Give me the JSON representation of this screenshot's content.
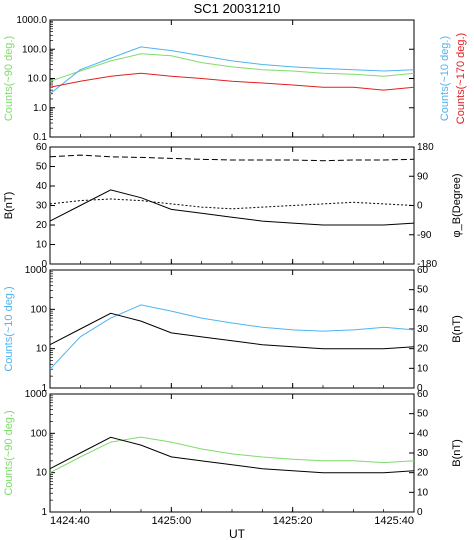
{
  "title": "SC1 20031210",
  "xaxis": {
    "label": "UT",
    "ticks": [
      "1424:40",
      "1425:00",
      "1425:20",
      "1425:40"
    ],
    "range_seconds_labels": [
      "1424:40",
      "1425:40"
    ]
  },
  "colors": {
    "ch_90": "#7ddc6a",
    "ch_10": "#4fb4f0",
    "ch_170": "#e02020",
    "b": "#000000",
    "axes": "#000000"
  },
  "chart_data": [
    {
      "type": "line",
      "panel": "counts-three-channels",
      "yscale": "log",
      "ylim": [
        0.1,
        1000
      ],
      "yticks": [
        "0.1",
        "1.0",
        "10.0",
        "100.0",
        "1000.0"
      ],
      "ylabel_left": "Counts(~90 deg.)",
      "ylabel_right_1": "Counts(~10 deg.)",
      "ylabel_right_2": "Counts(~170 deg.)",
      "x": [
        "1424:40",
        "1424:45",
        "1424:50",
        "1424:55",
        "1425:00",
        "1425:05",
        "1425:10",
        "1425:15",
        "1425:20",
        "1425:25",
        "1425:30",
        "1425:35",
        "1425:40"
      ],
      "series": [
        {
          "values": [
            8,
            18,
            40,
            70,
            60,
            35,
            25,
            20,
            18,
            15,
            14,
            12,
            15
          ]
        },
        {
          "values": [
            3,
            20,
            50,
            120,
            90,
            60,
            40,
            30,
            25,
            22,
            20,
            18,
            20
          ]
        },
        {
          "values": [
            5,
            8,
            12,
            15,
            12,
            10,
            8,
            7,
            6,
            5,
            5,
            4,
            5
          ]
        }
      ]
    },
    {
      "type": "line",
      "panel": "field-magnitude-and-phi",
      "ylim": [
        0,
        60
      ],
      "yticks": [
        "0",
        "10",
        "20",
        "30",
        "40",
        "50",
        "60"
      ],
      "ylabel_left": "B(nT)",
      "y2lim": [
        -180,
        180
      ],
      "y2ticks": [
        "-180",
        "-90",
        "0",
        "90",
        "180"
      ],
      "ylabel_right": "φ_B(Degree)",
      "x": [
        "1424:40",
        "1424:45",
        "1424:50",
        "1424:55",
        "1425:00",
        "1425:05",
        "1425:10",
        "1425:15",
        "1425:20",
        "1425:25",
        "1425:30",
        "1425:35",
        "1425:40"
      ],
      "series": [
        {
          "values": [
            22,
            30,
            38,
            34,
            28,
            26,
            24,
            22,
            21,
            20,
            20,
            20,
            21
          ]
        },
        {
          "axis": "right",
          "values": [
            150,
            155,
            150,
            148,
            145,
            142,
            140,
            140,
            140,
            138,
            140,
            140,
            142
          ]
        },
        {
          "axis": "right",
          "values": [
            5,
            15,
            20,
            15,
            5,
            -5,
            -10,
            -5,
            0,
            5,
            10,
            5,
            0
          ]
        }
      ]
    },
    {
      "type": "line",
      "panel": "counts-10-vs-b",
      "yscale": "log",
      "ylim": [
        1,
        1000
      ],
      "yticks": [
        "1",
        "10",
        "100",
        "1000"
      ],
      "ylabel_left": "Counts(~10 deg.)",
      "y2lim": [
        0,
        60
      ],
      "y2ticks": [
        "0",
        "10",
        "20",
        "30",
        "40",
        "50",
        "60"
      ],
      "ylabel_right": "B(nT)",
      "x": [
        "1424:40",
        "1424:45",
        "1424:50",
        "1424:55",
        "1425:00",
        "1425:05",
        "1425:10",
        "1425:15",
        "1425:20",
        "1425:25",
        "1425:30",
        "1425:35",
        "1425:40"
      ],
      "series": [
        {
          "values": [
            3,
            20,
            60,
            130,
            90,
            60,
            45,
            35,
            30,
            28,
            30,
            35,
            30
          ]
        },
        {
          "axis": "right",
          "values": [
            22,
            30,
            38,
            34,
            28,
            26,
            24,
            22,
            21,
            20,
            20,
            20,
            21
          ]
        }
      ]
    },
    {
      "type": "line",
      "panel": "counts-90-vs-b",
      "yscale": "log",
      "ylim": [
        1,
        1000
      ],
      "yticks": [
        "1",
        "10",
        "100",
        "1000"
      ],
      "ylabel_left": "Counts(~90 deg.)",
      "y2lim": [
        0,
        60
      ],
      "y2ticks": [
        "0",
        "10",
        "20",
        "30",
        "40",
        "50",
        "60"
      ],
      "ylabel_right": "B(nT)",
      "x": [
        "1424:40",
        "1424:45",
        "1424:50",
        "1424:55",
        "1425:00",
        "1425:05",
        "1425:10",
        "1425:15",
        "1425:20",
        "1425:25",
        "1425:30",
        "1425:35",
        "1425:40"
      ],
      "series": [
        {
          "values": [
            10,
            25,
            60,
            80,
            60,
            40,
            30,
            25,
            22,
            20,
            20,
            18,
            20
          ]
        },
        {
          "axis": "right",
          "values": [
            22,
            30,
            38,
            34,
            28,
            26,
            24,
            22,
            21,
            20,
            20,
            20,
            21
          ]
        }
      ]
    }
  ]
}
